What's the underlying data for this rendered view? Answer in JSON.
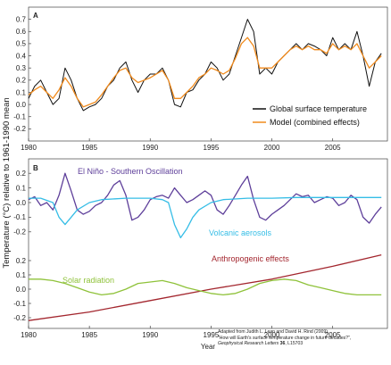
{
  "y_axis_label": "Temperature (°C) relative to 1961-1990 mean",
  "x_axis_label": "Year",
  "credit": {
    "line1": "Adapted from Judith L. Lean and David H. Rind (2009).",
    "line2": "\"How will Earth's surface temperature change in future decades?\",",
    "line3_journal": "Geophysical Research Letters",
    "line3_volume": "36",
    "line3_rest": ", L15703"
  },
  "colors": {
    "global": "#111111",
    "model": "#f08a1c",
    "enso": "#5e3f9a",
    "volcanic": "#35bde6",
    "anthropogenic": "#a3262e",
    "solar": "#8fc23a"
  },
  "chart_data": [
    {
      "panel": "A",
      "type": "line",
      "xlim": [
        1980,
        2009.5
      ],
      "ylim": [
        -0.3,
        0.8
      ],
      "x_ticks": [
        1980,
        1985,
        1990,
        1995,
        2000,
        2005
      ],
      "y_ticks": [
        -0.2,
        -0.1,
        0.0,
        0.1,
        0.2,
        0.3,
        0.4,
        0.5,
        0.6,
        0.7
      ],
      "series": [
        {
          "name": "Global surface temperature",
          "color": "#111111",
          "x": [
            1980.0,
            1980.5,
            1981.0,
            1981.5,
            1982.0,
            1982.5,
            1983.0,
            1983.5,
            1984.0,
            1984.5,
            1985.0,
            1985.5,
            1986.0,
            1986.5,
            1987.0,
            1987.5,
            1988.0,
            1988.5,
            1989.0,
            1989.5,
            1990.0,
            1990.5,
            1991.0,
            1991.5,
            1992.0,
            1992.5,
            1993.0,
            1993.5,
            1994.0,
            1994.5,
            1995.0,
            1995.5,
            1996.0,
            1996.5,
            1997.0,
            1997.5,
            1998.0,
            1998.5,
            1999.0,
            1999.5,
            2000.0,
            2000.5,
            2001.0,
            2001.5,
            2002.0,
            2002.5,
            2003.0,
            2003.5,
            2004.0,
            2004.5,
            2005.0,
            2005.5,
            2006.0,
            2006.5,
            2007.0,
            2007.5,
            2008.0,
            2008.5,
            2009.0
          ],
          "y": [
            0.05,
            0.15,
            0.2,
            0.1,
            0.0,
            0.05,
            0.3,
            0.2,
            0.05,
            -0.05,
            -0.02,
            0.0,
            0.05,
            0.15,
            0.2,
            0.3,
            0.35,
            0.2,
            0.1,
            0.2,
            0.25,
            0.25,
            0.3,
            0.2,
            0.0,
            -0.02,
            0.1,
            0.12,
            0.2,
            0.25,
            0.35,
            0.3,
            0.2,
            0.25,
            0.4,
            0.55,
            0.7,
            0.6,
            0.25,
            0.3,
            0.25,
            0.35,
            0.4,
            0.45,
            0.5,
            0.45,
            0.5,
            0.48,
            0.45,
            0.4,
            0.55,
            0.45,
            0.5,
            0.45,
            0.6,
            0.4,
            0.15,
            0.35,
            0.42
          ]
        },
        {
          "name": "Model (combined effects)",
          "color": "#f08a1c",
          "x": [
            1980.0,
            1980.5,
            1981.0,
            1981.5,
            1982.0,
            1982.5,
            1983.0,
            1983.5,
            1984.0,
            1984.5,
            1985.0,
            1985.5,
            1986.0,
            1986.5,
            1987.0,
            1987.5,
            1988.0,
            1988.5,
            1989.0,
            1989.5,
            1990.0,
            1990.5,
            1991.0,
            1991.5,
            1992.0,
            1992.5,
            1993.0,
            1993.5,
            1994.0,
            1994.5,
            1995.0,
            1995.5,
            1996.0,
            1996.5,
            1997.0,
            1997.5,
            1998.0,
            1998.5,
            1999.0,
            1999.5,
            2000.0,
            2000.5,
            2001.0,
            2001.5,
            2002.0,
            2002.5,
            2003.0,
            2003.5,
            2004.0,
            2004.5,
            2005.0,
            2005.5,
            2006.0,
            2006.5,
            2007.0,
            2007.5,
            2008.0,
            2008.5,
            2009.0
          ],
          "y": [
            0.08,
            0.12,
            0.15,
            0.1,
            0.05,
            0.12,
            0.22,
            0.15,
            0.05,
            -0.02,
            0.0,
            0.02,
            0.08,
            0.15,
            0.22,
            0.28,
            0.3,
            0.22,
            0.18,
            0.2,
            0.22,
            0.25,
            0.28,
            0.2,
            0.05,
            0.05,
            0.1,
            0.15,
            0.22,
            0.25,
            0.3,
            0.28,
            0.25,
            0.28,
            0.38,
            0.5,
            0.55,
            0.48,
            0.3,
            0.3,
            0.3,
            0.35,
            0.4,
            0.45,
            0.48,
            0.45,
            0.48,
            0.45,
            0.45,
            0.42,
            0.5,
            0.45,
            0.48,
            0.45,
            0.5,
            0.4,
            0.3,
            0.35,
            0.4
          ]
        }
      ]
    },
    {
      "panel": "B-upper",
      "type": "line",
      "xlim": [
        1980,
        2009.5
      ],
      "ylim": [
        -0.25,
        0.25
      ],
      "y_ticks": [
        -0.2,
        -0.1,
        0.0,
        0.1,
        0.2
      ],
      "series": [
        {
          "label": "El Niño - Southern Oscillation",
          "color": "#5e3f9a",
          "x": [
            1980.0,
            1980.5,
            1981.0,
            1981.5,
            1982.0,
            1982.5,
            1983.0,
            1983.5,
            1984.0,
            1984.5,
            1985.0,
            1985.5,
            1986.0,
            1986.5,
            1987.0,
            1987.5,
            1988.0,
            1988.5,
            1989.0,
            1989.5,
            1990.0,
            1990.5,
            1991.0,
            1991.5,
            1992.0,
            1992.5,
            1993.0,
            1993.5,
            1994.0,
            1994.5,
            1995.0,
            1995.5,
            1996.0,
            1996.5,
            1997.0,
            1997.5,
            1998.0,
            1998.5,
            1999.0,
            1999.5,
            2000.0,
            2000.5,
            2001.0,
            2001.5,
            2002.0,
            2002.5,
            2003.0,
            2003.5,
            2004.0,
            2004.5,
            2005.0,
            2005.5,
            2006.0,
            2006.5,
            2007.0,
            2007.5,
            2008.0,
            2008.5,
            2009.0
          ],
          "y": [
            0.02,
            0.04,
            -0.02,
            0.0,
            -0.05,
            0.05,
            0.2,
            0.08,
            -0.05,
            -0.08,
            -0.06,
            -0.02,
            0.0,
            0.05,
            0.12,
            0.15,
            0.05,
            -0.12,
            -0.1,
            -0.05,
            0.02,
            0.04,
            0.05,
            0.03,
            0.1,
            0.05,
            0.0,
            0.02,
            0.05,
            0.08,
            0.05,
            -0.05,
            -0.08,
            -0.02,
            0.05,
            0.12,
            0.18,
            0.02,
            -0.1,
            -0.12,
            -0.08,
            -0.05,
            -0.02,
            0.02,
            0.06,
            0.04,
            0.05,
            0.0,
            0.02,
            0.04,
            0.03,
            -0.02,
            0.0,
            0.05,
            0.02,
            -0.1,
            -0.14,
            -0.08,
            -0.03
          ]
        },
        {
          "label": "Volcanic aerosols",
          "color": "#35bde6",
          "x": [
            1980.0,
            1981.0,
            1982.0,
            1982.5,
            1983.0,
            1983.5,
            1984.0,
            1985.0,
            1986.0,
            1988.0,
            1990.0,
            1991.0,
            1991.5,
            1992.0,
            1992.5,
            1993.0,
            1993.5,
            1994.0,
            1995.0,
            1996.0,
            1998.0,
            2000.0,
            2002.0,
            2004.0,
            2006.0,
            2008.0,
            2009.0
          ],
          "y": [
            0.03,
            0.03,
            0.0,
            -0.1,
            -0.15,
            -0.1,
            -0.05,
            0.0,
            0.02,
            0.03,
            0.03,
            0.02,
            0.0,
            -0.15,
            -0.24,
            -0.18,
            -0.1,
            -0.05,
            0.0,
            0.02,
            0.03,
            0.03,
            0.035,
            0.035,
            0.035,
            0.035,
            0.035
          ]
        }
      ]
    },
    {
      "panel": "B-lower",
      "type": "line",
      "xlim": [
        1980,
        2009.5
      ],
      "ylim": [
        -0.25,
        0.25
      ],
      "x_ticks": [
        1980,
        1985,
        1990,
        1995,
        2000,
        2005
      ],
      "y_ticks": [
        -0.2,
        -0.1,
        0.0,
        0.1,
        0.2
      ],
      "series": [
        {
          "label": "Anthropogenic effects",
          "color": "#a3262e",
          "x": [
            1980,
            1985,
            1990,
            1995,
            2000,
            2005,
            2009
          ],
          "y": [
            -0.22,
            -0.16,
            -0.08,
            0.0,
            0.07,
            0.16,
            0.24
          ]
        },
        {
          "label": "Solar radiation",
          "color": "#8fc23a",
          "x": [
            1980.0,
            1981.0,
            1982.0,
            1983.0,
            1984.0,
            1985.0,
            1986.0,
            1987.0,
            1988.0,
            1989.0,
            1990.0,
            1991.0,
            1992.0,
            1993.0,
            1994.0,
            1995.0,
            1996.0,
            1997.0,
            1998.0,
            1999.0,
            2000.0,
            2001.0,
            2002.0,
            2003.0,
            2004.0,
            2005.0,
            2006.0,
            2007.0,
            2008.0,
            2009.0
          ],
          "y": [
            0.07,
            0.07,
            0.06,
            0.04,
            0.01,
            -0.02,
            -0.04,
            -0.03,
            0.0,
            0.04,
            0.05,
            0.06,
            0.04,
            0.01,
            -0.01,
            -0.03,
            -0.04,
            -0.03,
            0.0,
            0.04,
            0.06,
            0.07,
            0.06,
            0.03,
            0.01,
            -0.01,
            -0.03,
            -0.04,
            -0.04,
            -0.04
          ]
        }
      ]
    }
  ]
}
